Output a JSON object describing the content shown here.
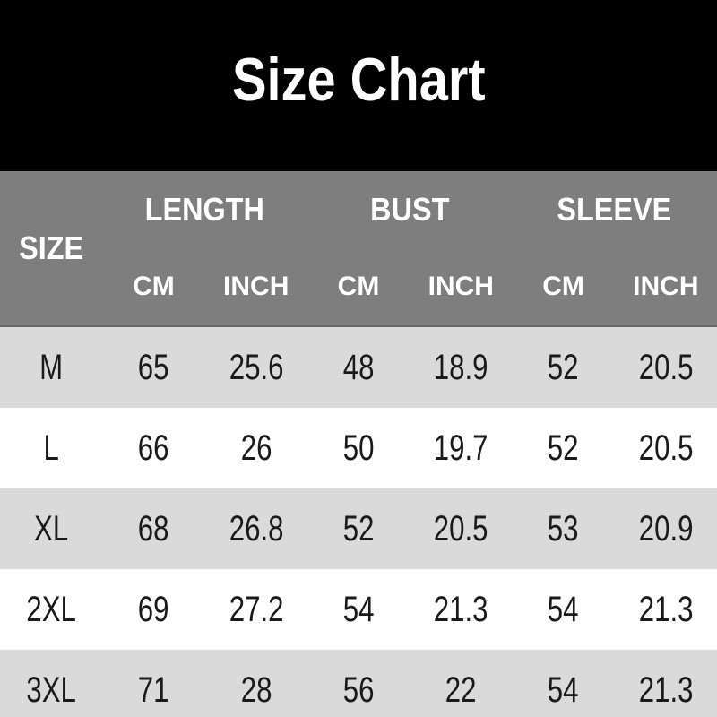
{
  "title": "Size Chart",
  "colors": {
    "banner_background": "#000000",
    "header_background": "#7e7e7e",
    "header_text": "#ffffff",
    "shaded_row_background": "#dadada",
    "white_row_background": "#fefefe",
    "data_text": "#1a1a1a"
  },
  "table": {
    "header": {
      "size_label": "SIZE",
      "groups": [
        {
          "label": "LENGTH"
        },
        {
          "label": "BUST"
        },
        {
          "label": "SLEEVE"
        }
      ],
      "unit_labels": [
        "CM",
        "INCH",
        "CM",
        "INCH",
        "CM",
        "INCH"
      ]
    },
    "rows": [
      {
        "size": "M",
        "cells": [
          "65",
          "25.6",
          "48",
          "18.9",
          "52",
          "20.5"
        ]
      },
      {
        "size": "L",
        "cells": [
          "66",
          "26",
          "50",
          "19.7",
          "52",
          "20.5"
        ]
      },
      {
        "size": "XL",
        "cells": [
          "68",
          "26.8",
          "52",
          "20.5",
          "53",
          "20.9"
        ]
      },
      {
        "size": "2XL",
        "cells": [
          "69",
          "27.2",
          "54",
          "21.3",
          "54",
          "21.3"
        ]
      },
      {
        "size": "3XL",
        "cells": [
          "71",
          "28",
          "56",
          "22",
          "54",
          "21.3"
        ]
      }
    ]
  },
  "chart_data": {
    "type": "table",
    "title": "Size Chart",
    "columns": [
      "SIZE",
      "LENGTH CM",
      "LENGTH INCH",
      "BUST CM",
      "BUST INCH",
      "SLEEVE CM",
      "SLEEVE INCH"
    ],
    "rows": [
      [
        "M",
        65,
        25.6,
        48,
        18.9,
        52,
        20.5
      ],
      [
        "L",
        66,
        26,
        50,
        19.7,
        52,
        20.5
      ],
      [
        "XL",
        68,
        26.8,
        52,
        20.5,
        53,
        20.9
      ],
      [
        "2XL",
        69,
        27.2,
        54,
        21.3,
        54,
        21.3
      ],
      [
        "3XL",
        71,
        28,
        56,
        22,
        54,
        21.3
      ]
    ],
    "layout": "banner title on black, two-tier gray header, zebra-striped rows starting shaded"
  }
}
